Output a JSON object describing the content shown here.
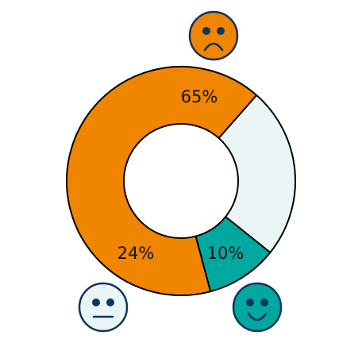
{
  "chart_data": {
    "type": "pie",
    "variant": "donut",
    "series": [
      {
        "name": "",
        "category": "negative",
        "value": 65,
        "label": "65%",
        "color": "#F08500",
        "face": "sad-face-icon"
      },
      {
        "name": "",
        "category": "positive",
        "value": 10,
        "label": "10%",
        "color": "#00A8A0",
        "face": "smile-face-icon"
      },
      {
        "name": "",
        "category": "neutral",
        "value": 24,
        "label": "24%",
        "color": "#EAF6F6",
        "face": "neutral-face-icon"
      }
    ],
    "outline_color": "#000000",
    "face_outline_color": "#0F3460",
    "face_feature_color": "#0F3460"
  }
}
